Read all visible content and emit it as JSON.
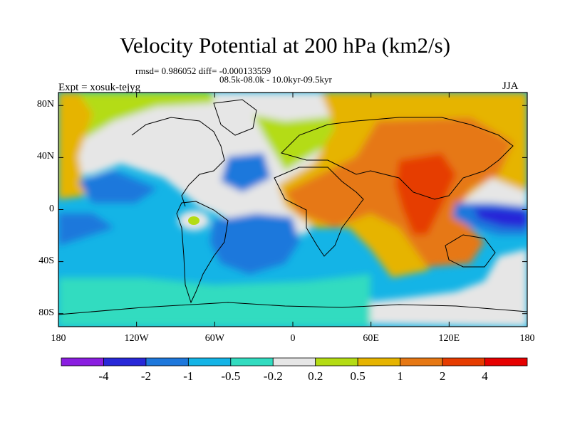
{
  "figure": {
    "title": "Velocity Potential at 200 hPa (km2/s)",
    "stats": "rmsd= 0.986052 diff= -0.000133559",
    "period": "08.5k-08.0k - 10.0kyr-09.5kyr",
    "experiment": "Expt = xosuk-tejyg",
    "season": "JJA"
  },
  "map": {
    "projection": "cylindrical equidistant",
    "lon_range": [
      -180,
      180
    ],
    "lat_range": [
      -90,
      90
    ],
    "lat_ticks": [
      {
        "value": 80,
        "label": "80N"
      },
      {
        "value": 40,
        "label": "40N"
      },
      {
        "value": 0,
        "label": "0"
      },
      {
        "value": -40,
        "label": "40S"
      },
      {
        "value": -80,
        "label": "80S"
      }
    ],
    "lon_ticks": [
      {
        "value": -180,
        "label": "180"
      },
      {
        "value": -120,
        "label": "120W"
      },
      {
        "value": -60,
        "label": "60W"
      },
      {
        "value": 0,
        "label": "0"
      },
      {
        "value": 60,
        "label": "60E"
      },
      {
        "value": 120,
        "label": "120E"
      },
      {
        "value": 180,
        "label": "180"
      }
    ]
  },
  "colorbar": {
    "levels": [
      "-4",
      "-2",
      "-1",
      "-0.5",
      "-0.2",
      "0.2",
      "0.5",
      "1",
      "2",
      "4"
    ],
    "colors": [
      "#8a1ee0",
      "#2828d8",
      "#1e78dc",
      "#14b4e6",
      "#32dcc0",
      "#e6e6e6",
      "#b4dc14",
      "#e6b400",
      "#e67814",
      "#e63c00",
      "#e60000"
    ]
  }
}
